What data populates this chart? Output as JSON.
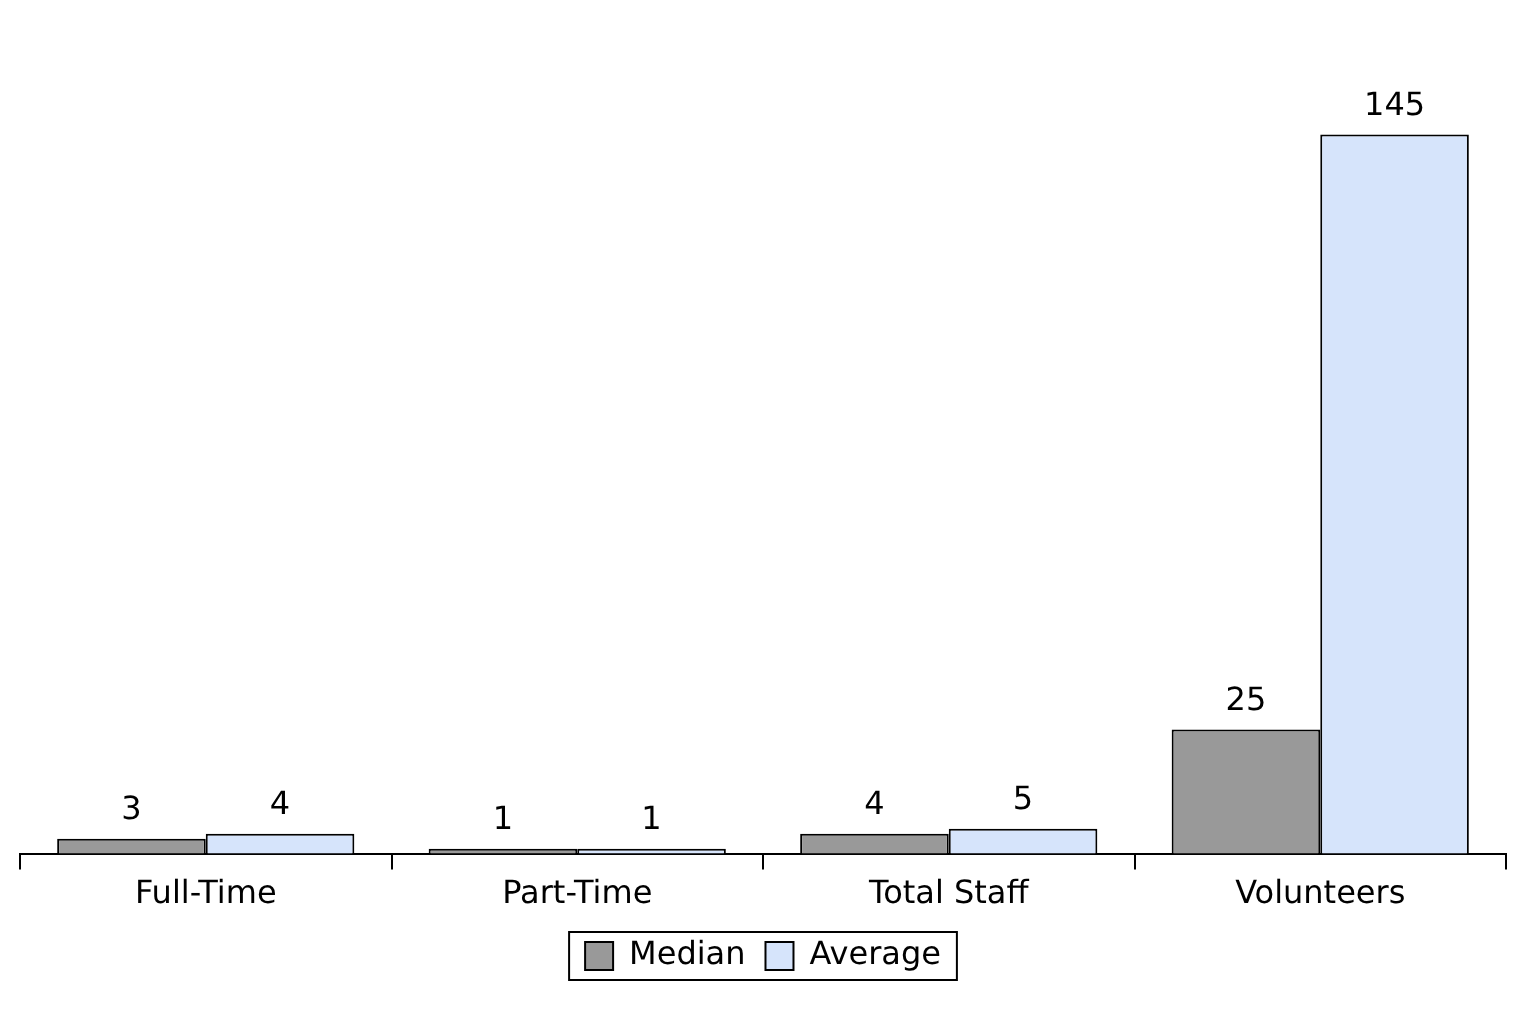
{
  "chart_data": {
    "type": "bar",
    "categories": [
      "Full-Time",
      "Part-Time",
      "Total Staff",
      "Volunteers"
    ],
    "series": [
      {
        "name": "Median",
        "color": "#999999",
        "values": [
          3,
          1,
          4,
          25
        ]
      },
      {
        "name": "Average",
        "color": "#d6e4fb",
        "values": [
          4,
          1,
          5,
          145
        ]
      }
    ],
    "data_labels": true,
    "legend": "bottom",
    "grid": false,
    "tick_labels": "x"
  }
}
